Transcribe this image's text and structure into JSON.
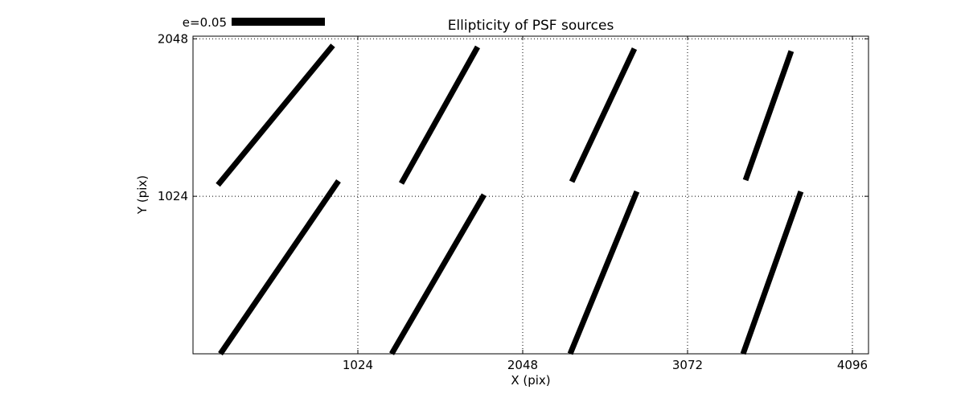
{
  "chart_data": {
    "type": "line",
    "title": "Ellipticity of PSF sources",
    "xlabel": "X (pix)",
    "ylabel": "Y (pix)",
    "xlim": [
      0,
      4196
    ],
    "ylim": [
      0,
      2065
    ],
    "xticks": [
      1024,
      2048,
      3072,
      4096
    ],
    "yticks": [
      1024,
      2048
    ],
    "grid": true,
    "grid_style": "dotted",
    "legend": {
      "label": "e=0.05",
      "position": "top-left-above-axes"
    },
    "whisker_color": "#000000",
    "background_color": "#ffffff",
    "segments": [
      {
        "x1": 155,
        "y1": 1098,
        "x2": 869,
        "y2": 2005
      },
      {
        "x1": 1294,
        "y1": 1108,
        "x2": 1768,
        "y2": 1995
      },
      {
        "x1": 2353,
        "y1": 1119,
        "x2": 2742,
        "y2": 1984
      },
      {
        "x1": 3432,
        "y1": 1129,
        "x2": 3716,
        "y2": 1968
      },
      {
        "x1": 170,
        "y1": 0,
        "x2": 904,
        "y2": 1124
      },
      {
        "x1": 1234,
        "y1": 0,
        "x2": 1808,
        "y2": 1034
      },
      {
        "x1": 2343,
        "y1": 0,
        "x2": 2757,
        "y2": 1055
      },
      {
        "x1": 3417,
        "y1": 0,
        "x2": 3776,
        "y2": 1055
      }
    ]
  }
}
